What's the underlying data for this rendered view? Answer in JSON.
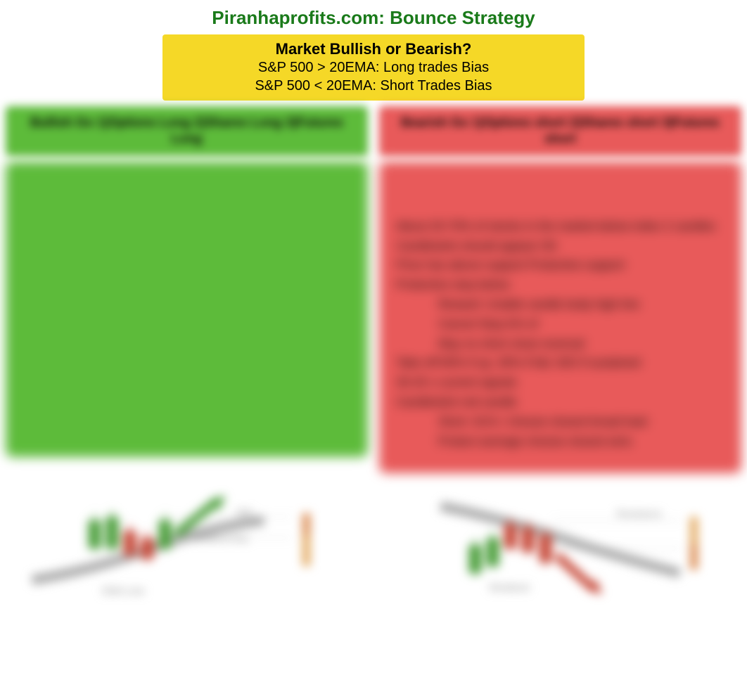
{
  "title": "Piranhaprofits.com: Bounce Strategy",
  "market_box": {
    "heading": "Market Bullish or Bearish?",
    "line1": "S&P 500 > 20EMA: Long trades Bias",
    "line2": "S&P 500 < 20EMA: Short Trades Bias"
  },
  "left_column": {
    "header": "Bullish Go 1)Options Long 2)Shares Long 3)Futures Long",
    "header_bg": "#5dbb3a",
    "body_bg": "#5dbb3a",
    "body_lines": []
  },
  "right_column": {
    "header": "Bearish Go 1)Options short 2)Shares short 3)Futures short",
    "header_bg": "#e85a5a",
    "body_bg": "#e85a5a",
    "body_lines": [
      {
        "text": "About 20-70% of stocks in the market below index 2 candles",
        "indent": false
      },
      {
        "text": "Candlestick should appear OK",
        "indent": false
      },
      {
        "text": "Price has above support Protective support",
        "indent": false
      },
      {
        "text": "Protective stop below",
        "indent": false
      },
      {
        "text": "Reward: Unable candle body high line",
        "indent": true
      },
      {
        "text": "Cancel Stop A% of",
        "indent": true
      },
      {
        "text": "May no short close reversal",
        "indent": true
      },
      {
        "text": "Take off 60% if up, 30% if fail, N/D if sustained",
        "indent": false
      },
      {
        "text": "30-20 x current signals",
        "indent": false
      },
      {
        "text": "Candlestick red candle",
        "indent": false
      },
      {
        "text": "Short -61% / choose closest broad load",
        "indent": true
      },
      {
        "text": "Protect average choose closest wins",
        "indent": true
      }
    ]
  },
  "diagrams": {
    "left": {
      "type": "candlestick-bounce-up",
      "ema_line_color": "#888888",
      "green_candle_color": "#4a9e3a",
      "red_candle_color": "#c74a3a",
      "arrow_color": "#4a9e3a",
      "label_color": "#888888",
      "labels": [
        "Sell",
        "Breakout Buy",
        "EMA Line"
      ],
      "side_bar_color": "#e0a050"
    },
    "right": {
      "type": "candlestick-bounce-down",
      "ema_line_color": "#888888",
      "green_candle_color": "#4a9e3a",
      "red_candle_color": "#c74a3a",
      "arrow_color": "#c74a3a",
      "label_color": "#888888",
      "labels": [
        "Resistance",
        "Breakout"
      ],
      "side_bar_color": "#e0a050"
    }
  },
  "colors": {
    "title_color": "#1a7a1a",
    "yellow_box": "#f5d827",
    "green": "#5dbb3a",
    "red": "#e85a5a",
    "text": "#000000",
    "background": "#ffffff"
  }
}
